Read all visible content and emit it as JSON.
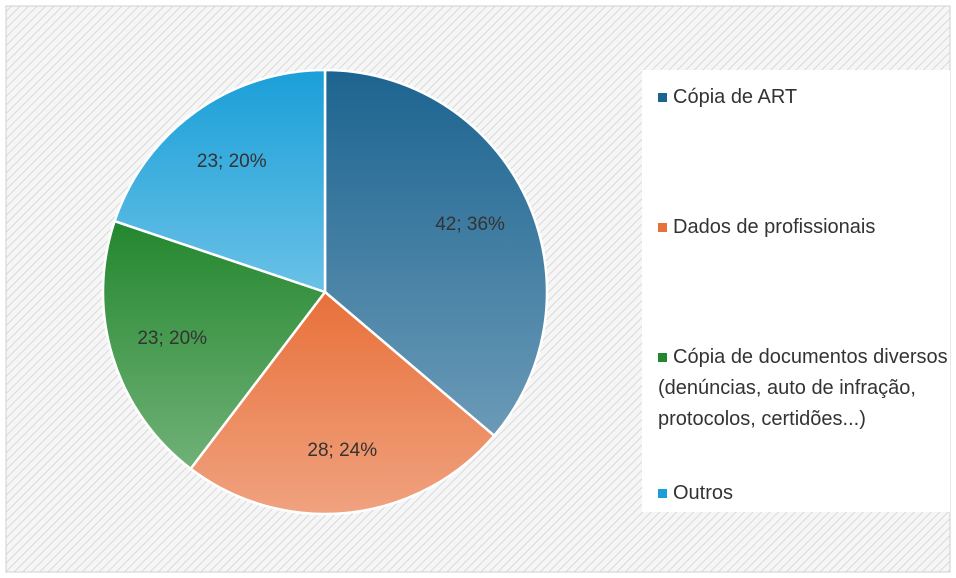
{
  "chart_data": {
    "type": "pie",
    "categories": [
      "Cópia de ART",
      "Dados de profissionais",
      "Cópia de documentos diversos (denúncias, auto de infração, protocolos, certidões...)",
      "Outros"
    ],
    "values": [
      42,
      28,
      23,
      23
    ],
    "value_labels": [
      "42; 36%",
      "28; 24%",
      "23; 20%",
      "23; 20%"
    ],
    "colors": [
      "#1c6490",
      "#e8703a",
      "#23872e",
      "#1a9fd8"
    ],
    "legend": "right"
  }
}
